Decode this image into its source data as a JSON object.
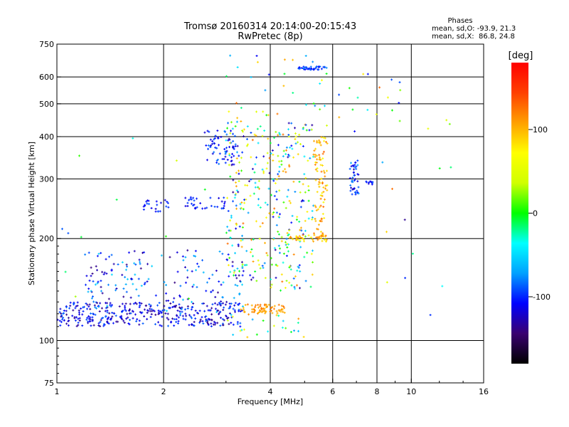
{
  "chart_data": {
    "type": "scatter",
    "title": "Tromsø 20160314 20:14:00-20:15:43",
    "subtitle": "RwPretec (8p)",
    "xlabel": "Frequency [MHz]",
    "ylabel": "Stationary phase Virtual Height [km]",
    "x_scale": "log",
    "y_scale": "log",
    "xlim": [
      1,
      16
    ],
    "ylim": [
      75,
      750
    ],
    "x_ticks": [
      1,
      2,
      4,
      6,
      8,
      10,
      16
    ],
    "x_tick_labels": [
      "1",
      "2",
      "4",
      "6",
      "8",
      "10",
      "16"
    ],
    "y_ticks": [
      75,
      100,
      200,
      300,
      400,
      500,
      600,
      750
    ],
    "y_tick_labels": [
      "75",
      "100",
      "200",
      "300",
      "400",
      "500",
      "600",
      "750"
    ],
    "grid": true,
    "colorbar": {
      "title": "[deg]",
      "range": [
        -180,
        180
      ],
      "ticks": [
        100,
        0,
        -100
      ],
      "tick_labels": [
        "100",
        "0",
        "-100"
      ],
      "colormap": "rainbow",
      "colors": [
        "#000000",
        "#3a0070",
        "#0000ff",
        "#00a0ff",
        "#00ffff",
        "#00ff00",
        "#d0ff00",
        "#ffff00",
        "#ffa000",
        "#ff4000",
        "#ff0000"
      ]
    },
    "phases_info": {
      "title": "Phases",
      "line_o": "mean, sd,O: -93.9, 21.3",
      "line_x": "mean, sd,X:  86.8, 24.8"
    },
    "point_clusters": [
      {
        "name": "E-layer trace",
        "x_range": [
          1.0,
          3.3
        ],
        "y_range": [
          110,
          130
        ],
        "count": 360,
        "phase_range": [
          -140,
          -85
        ]
      },
      {
        "name": "E-layer spread",
        "x_range": [
          1.2,
          3.4
        ],
        "y_range": [
          120,
          185
        ],
        "count": 180,
        "phase_range": [
          -140,
          -50
        ]
      },
      {
        "name": "E yellow band",
        "x_range": [
          3.3,
          4.4
        ],
        "y_range": [
          120,
          128
        ],
        "count": 70,
        "phase_range": [
          95,
          125
        ]
      },
      {
        "name": "low echoes",
        "x_range": [
          3.0,
          5.0
        ],
        "y_range": [
          100,
          120
        ],
        "count": 25,
        "phase_range": [
          -120,
          120
        ]
      },
      {
        "name": "F cluster 1.7-2.1",
        "x_range": [
          1.75,
          2.1
        ],
        "y_range": [
          240,
          260
        ],
        "count": 22,
        "phase_range": [
          -120,
          -90
        ]
      },
      {
        "name": "F cluster 2.3-3.0",
        "x_range": [
          2.3,
          3.0
        ],
        "y_range": [
          245,
          265
        ],
        "count": 35,
        "phase_range": [
          -120,
          -90
        ]
      },
      {
        "name": "F O-mode 2.6-3.2",
        "x_range": [
          2.6,
          3.2
        ],
        "y_range": [
          330,
          420
        ],
        "count": 70,
        "phase_range": [
          -120,
          -80
        ]
      },
      {
        "name": "F spread 3-4",
        "x_range": [
          3.0,
          4.0
        ],
        "y_range": [
          150,
          480
        ],
        "count": 170,
        "phase_range": [
          -140,
          130
        ]
      },
      {
        "name": "F spread 4-5",
        "x_range": [
          4.0,
          5.3
        ],
        "y_range": [
          140,
          450
        ],
        "count": 190,
        "phase_range": [
          -140,
          130
        ]
      },
      {
        "name": "F X-mode 5.3-5.8",
        "x_range": [
          5.3,
          5.8
        ],
        "y_range": [
          200,
          400
        ],
        "count": 90,
        "phase_range": [
          60,
          130
        ]
      },
      {
        "name": "F3 trace 200 km",
        "x_range": [
          4.5,
          5.8
        ],
        "y_range": [
          196,
          205
        ],
        "count": 40,
        "phase_range": [
          60,
          130
        ]
      },
      {
        "name": "top trace",
        "x_range": [
          4.8,
          5.7
        ],
        "y_range": [
          630,
          645
        ],
        "count": 40,
        "phase_range": [
          -110,
          -80
        ]
      },
      {
        "name": "6.7-7.1 cluster",
        "x_range": [
          6.7,
          7.1
        ],
        "y_range": [
          270,
          340
        ],
        "count": 45,
        "phase_range": [
          -130,
          -70
        ]
      },
      {
        "name": "7.5 line",
        "x_range": [
          7.4,
          7.8
        ],
        "y_range": [
          288,
          296
        ],
        "count": 10,
        "phase_range": [
          -120,
          -90
        ]
      },
      {
        "name": "high sparse",
        "x_range": [
          3.0,
          9.5
        ],
        "y_range": [
          400,
          700
        ],
        "count": 50,
        "phase_range": [
          -140,
          130
        ]
      },
      {
        "name": "scatter 1-3 sparse",
        "x_range": [
          1.0,
          3.0
        ],
        "y_range": [
          130,
          400
        ],
        "count": 15,
        "phase_range": [
          -130,
          50
        ]
      },
      {
        "name": "outliers 8-13",
        "x_range": [
          8.0,
          13.0
        ],
        "y_range": [
          80,
          450
        ],
        "count": 14,
        "phase_range": [
          -140,
          130
        ]
      }
    ]
  }
}
